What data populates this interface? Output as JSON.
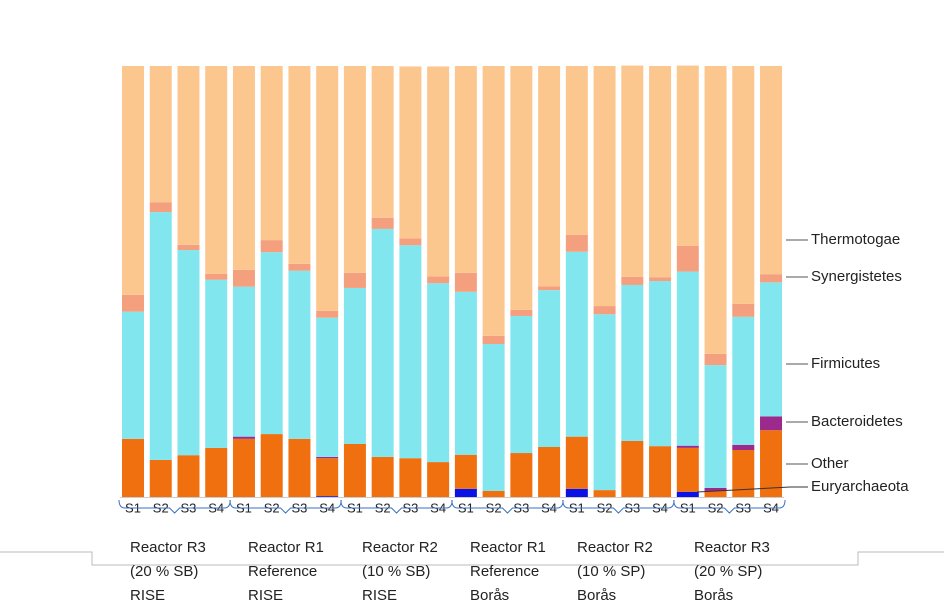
{
  "chart_data": {
    "type": "stacked_bar",
    "categories": [
      "S1",
      "S2",
      "S3",
      "S4",
      "S1",
      "S2",
      "S3",
      "S4",
      "S1",
      "S2",
      "S3",
      "S4",
      "S1",
      "S2",
      "S3",
      "S4",
      "S1",
      "S2",
      "S3",
      "S4",
      "S1",
      "S2",
      "S3",
      "S4"
    ],
    "groups": [
      {
        "label": [
          "Reactor R3",
          "(20 % SB)",
          "RISE"
        ]
      },
      {
        "label": [
          "Reactor R1",
          "Reference",
          "RISE"
        ]
      },
      {
        "label": [
          "Reactor R2",
          "(10 % SB)",
          "RISE"
        ]
      },
      {
        "label": [
          "Reactor R1",
          "Reference",
          "Borås"
        ]
      },
      {
        "label": [
          "Reactor R2",
          "(10 % SP)",
          "Borås"
        ]
      },
      {
        "label": [
          "Reactor R3",
          "(20 % SP)",
          "Borås"
        ]
      }
    ],
    "ylim": [
      0,
      100
    ],
    "series": [
      {
        "name": "Euryarchaeota",
        "color": "#0a12e6",
        "values": [
          0,
          0,
          0,
          0,
          0,
          0,
          0,
          0.2,
          0,
          0,
          0,
          0,
          1.9,
          0,
          0,
          0,
          1.9,
          0,
          0,
          0,
          1.2,
          0,
          0,
          0
        ]
      },
      {
        "name": "Other",
        "color": "#f0700f",
        "values": [
          13.5,
          8.6,
          9.7,
          11.4,
          13.5,
          14.6,
          13.5,
          8.8,
          12.3,
          9.3,
          9.0,
          8.1,
          7.9,
          1.4,
          10.2,
          11.6,
          12.1,
          1.6,
          13.0,
          11.8,
          10.2,
          1.4,
          10.9,
          15.5
        ]
      },
      {
        "name": "Bacteroidetes",
        "color": "#9b2a8c",
        "values": [
          0,
          0,
          0,
          0,
          0.5,
          0,
          0,
          0.3,
          0,
          0,
          0,
          0,
          0,
          0,
          0,
          0,
          0,
          0,
          0,
          0,
          0.5,
          0.7,
          1.2,
          3.2
        ]
      },
      {
        "name": "Firmicutes",
        "color": "#82e6ef",
        "values": [
          29.5,
          57.5,
          47.6,
          39.0,
          34.8,
          42.2,
          39.0,
          32.3,
          36.2,
          52.9,
          49.4,
          41.5,
          37.8,
          34.1,
          31.8,
          36.4,
          42.9,
          40.8,
          36.2,
          38.3,
          40.4,
          28.5,
          29.7,
          31.1
        ]
      },
      {
        "name": "Synergistetes",
        "color": "#f4a07f",
        "values": [
          3.9,
          2.3,
          1.2,
          1.4,
          3.9,
          2.8,
          1.6,
          1.6,
          3.5,
          2.6,
          1.6,
          1.6,
          4.4,
          1.9,
          1.4,
          0.9,
          3.9,
          1.9,
          1.9,
          0.9,
          6.0,
          2.6,
          3.0,
          1.9
        ]
      },
      {
        "name": "Thermotogae",
        "color": "#fcc78f",
        "values": [
          53.1,
          31.6,
          41.5,
          48.2,
          47.3,
          40.4,
          45.9,
          56.8,
          48.0,
          35.2,
          39.9,
          48.7,
          48.0,
          62.6,
          56.6,
          51.1,
          39.2,
          55.7,
          49.0,
          49.0,
          41.8,
          66.8,
          55.2,
          48.3
        ]
      }
    ]
  }
}
